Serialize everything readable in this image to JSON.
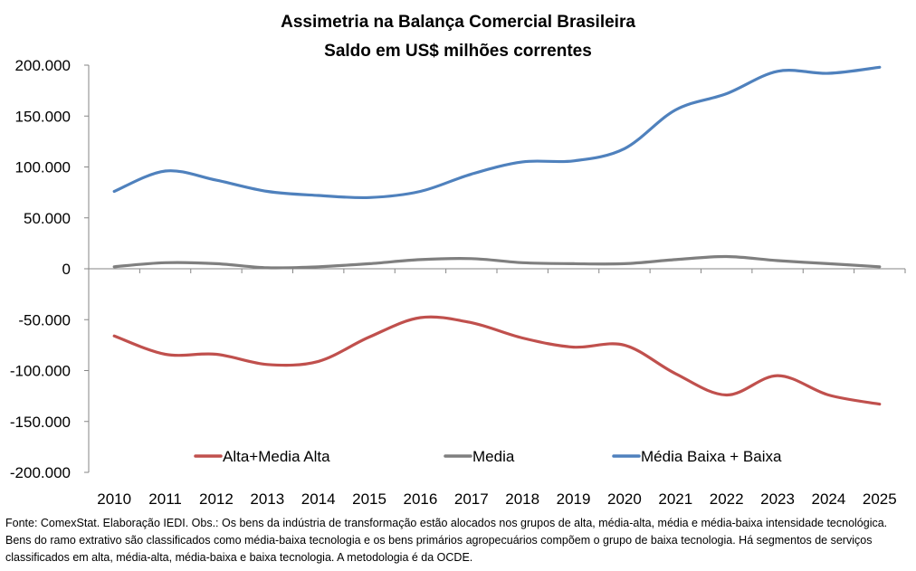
{
  "chart_data": {
    "type": "line",
    "title": [
      "Assimetria na Balança Comercial Brasileira",
      "Saldo em US$ milhões correntes"
    ],
    "categories": [
      "2010",
      "2011",
      "2012",
      "2013",
      "2014",
      "2015",
      "2016",
      "2017",
      "2018",
      "2019",
      "2020",
      "2021",
      "2022",
      "2023",
      "2024",
      "2025"
    ],
    "y_ticks": [
      200000,
      150000,
      100000,
      50000,
      0,
      -50000,
      -100000,
      -150000,
      -200000
    ],
    "y_tick_labels": [
      "200.000",
      "150.000",
      "100.000",
      "50.000",
      "0",
      "-50.000",
      "-100.000",
      "-150.000",
      "-200.000"
    ],
    "ylim": [
      -200000,
      200000
    ],
    "grid": false,
    "legend_position": "bottom-inside",
    "series": [
      {
        "name": "Alta+Media Alta",
        "color": "#C0504D",
        "values": [
          -66000,
          -84000,
          -84000,
          -94000,
          -91000,
          -67000,
          -48000,
          -53000,
          -68000,
          -77000,
          -75000,
          -103000,
          -124000,
          -105000,
          -124000,
          -133000
        ]
      },
      {
        "name": "Media",
        "color": "#7F7F7F",
        "values": [
          2000,
          6000,
          5000,
          1000,
          2000,
          5000,
          9000,
          10000,
          6000,
          5000,
          5000,
          9000,
          12000,
          8000,
          5000,
          2000
        ]
      },
      {
        "name": "Média Baixa + Baixa",
        "color": "#4F81BD",
        "values": [
          76000,
          96000,
          87000,
          76000,
          72000,
          70000,
          76000,
          93000,
          105000,
          106000,
          118000,
          156000,
          172000,
          194000,
          192000,
          198000
        ]
      }
    ]
  },
  "footnote": "Fonte: ComexStat. Elaboração IEDI. Obs.: Os bens da indústria de transformação estão alocados nos grupos de alta, média-alta, média e média-baixa intensidade tecnológica. Bens do ramo extrativo são classificados como média-baixa tecnologia e os bens primários agropecuários compõem o grupo de baixa tecnologia. Há segmentos de serviços classificados em alta, média-alta, média-baixa e baixa tecnologia. A metodologia é da OCDE."
}
